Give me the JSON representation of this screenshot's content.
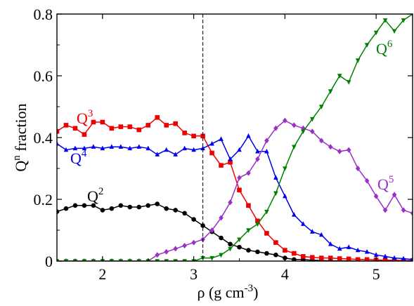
{
  "chart_data": {
    "type": "line",
    "xlabel": {
      "base": "ρ (g cm",
      "sup": "-3",
      "tail": ")"
    },
    "ylabel": {
      "base": "Q",
      "sup": "n",
      "tail": " fraction"
    },
    "xlim": [
      1.5,
      5.4
    ],
    "ylim": [
      0,
      0.8
    ],
    "xticks": [
      2,
      3,
      4,
      5
    ],
    "yticks": [
      0,
      0.2,
      0.4,
      0.6,
      0.8
    ],
    "xtick_labels": [
      "2",
      "3",
      "4",
      "5"
    ],
    "ytick_labels": [
      "0",
      "0.2",
      "0.4",
      "0.6",
      "0.8"
    ],
    "grid": false,
    "legend": "inline labels",
    "reference_line": {
      "x": 3.1,
      "style": "dashed"
    },
    "series": [
      {
        "name": "Q2",
        "label_base": "Q",
        "label_sup": "2",
        "color": "#000000",
        "marker": "circle",
        "x": [
          1.5,
          1.6,
          1.7,
          1.8,
          1.9,
          2.0,
          2.1,
          2.2,
          2.3,
          2.4,
          2.5,
          2.6,
          2.7,
          2.8,
          2.9,
          3.0,
          3.1,
          3.2,
          3.3,
          3.4,
          3.5,
          3.6,
          3.7,
          3.8,
          3.9,
          4.0,
          4.1,
          4.2,
          4.3,
          4.4,
          4.5,
          4.6,
          4.7,
          4.8,
          4.9,
          5.0,
          5.1,
          5.2,
          5.3,
          5.4
        ],
        "y": [
          0.16,
          0.17,
          0.18,
          0.18,
          0.18,
          0.165,
          0.17,
          0.18,
          0.175,
          0.175,
          0.18,
          0.185,
          0.17,
          0.165,
          0.155,
          0.135,
          0.115,
          0.095,
          0.075,
          0.055,
          0.045,
          0.035,
          0.03,
          0.025,
          0.02,
          0.01,
          0.005,
          0.005,
          0.003,
          0.002,
          0.001,
          0.001,
          0.001,
          0,
          0,
          0,
          0,
          0,
          0,
          0
        ]
      },
      {
        "name": "Q3",
        "label_base": "Q",
        "label_sup": "3",
        "color": "#ee0000",
        "marker": "square",
        "x": [
          1.5,
          1.6,
          1.7,
          1.8,
          1.9,
          2.0,
          2.1,
          2.2,
          2.3,
          2.4,
          2.5,
          2.6,
          2.7,
          2.8,
          2.9,
          3.0,
          3.1,
          3.2,
          3.3,
          3.4,
          3.5,
          3.6,
          3.7,
          3.8,
          3.9,
          4.0,
          4.1,
          4.2,
          4.3,
          4.4,
          4.5,
          4.6,
          4.7,
          4.8,
          4.9,
          5.0,
          5.1,
          5.2,
          5.3,
          5.4
        ],
        "y": [
          0.42,
          0.44,
          0.43,
          0.41,
          0.45,
          0.45,
          0.43,
          0.435,
          0.435,
          0.425,
          0.44,
          0.465,
          0.44,
          0.445,
          0.415,
          0.405,
          0.405,
          0.35,
          0.31,
          0.32,
          0.23,
          0.18,
          0.13,
          0.09,
          0.06,
          0.035,
          0.025,
          0.015,
          0.012,
          0.01,
          0.01,
          0.008,
          0.007,
          0.005,
          0.005,
          0.004,
          0.003,
          0.003,
          0.002,
          0.002
        ]
      },
      {
        "name": "Q4",
        "label_base": "Q",
        "label_sup": "4",
        "color": "#0000ee",
        "marker": "triangle-up",
        "x": [
          1.5,
          1.6,
          1.7,
          1.8,
          1.9,
          2.0,
          2.1,
          2.2,
          2.3,
          2.4,
          2.5,
          2.6,
          2.7,
          2.8,
          2.9,
          3.0,
          3.1,
          3.2,
          3.3,
          3.4,
          3.5,
          3.6,
          3.7,
          3.8,
          3.9,
          4.0,
          4.1,
          4.2,
          4.3,
          4.4,
          4.5,
          4.6,
          4.7,
          4.8,
          4.9,
          5.0,
          5.1,
          5.2,
          5.3,
          5.4
        ],
        "y": [
          0.38,
          0.36,
          0.365,
          0.365,
          0.37,
          0.365,
          0.37,
          0.37,
          0.365,
          0.37,
          0.365,
          0.345,
          0.36,
          0.345,
          0.365,
          0.36,
          0.365,
          0.38,
          0.395,
          0.33,
          0.36,
          0.405,
          0.355,
          0.355,
          0.27,
          0.21,
          0.15,
          0.12,
          0.095,
          0.085,
          0.055,
          0.04,
          0.045,
          0.035,
          0.03,
          0.02,
          0.015,
          0.01,
          0.008,
          0.005
        ]
      },
      {
        "name": "Q5",
        "label_base": "Q",
        "label_sup": "5",
        "color": "#9a30c8",
        "marker": "diamond",
        "x": [
          1.5,
          1.6,
          1.7,
          1.8,
          1.9,
          2.0,
          2.1,
          2.2,
          2.3,
          2.4,
          2.5,
          2.6,
          2.7,
          2.8,
          2.9,
          3.0,
          3.1,
          3.2,
          3.3,
          3.4,
          3.5,
          3.6,
          3.7,
          3.8,
          3.9,
          4.0,
          4.1,
          4.2,
          4.3,
          4.4,
          4.5,
          4.6,
          4.7,
          4.8,
          4.9,
          5.0,
          5.1,
          5.2,
          5.3,
          5.4
        ],
        "y": [
          0,
          0,
          0,
          0,
          0,
          0,
          0,
          0,
          0,
          0,
          0,
          0.02,
          0.03,
          0.04,
          0.05,
          0.06,
          0.07,
          0.1,
          0.14,
          0.19,
          0.27,
          0.285,
          0.33,
          0.39,
          0.43,
          0.455,
          0.44,
          0.43,
          0.42,
          0.39,
          0.37,
          0.355,
          0.36,
          0.3,
          0.26,
          0.21,
          0.165,
          0.215,
          0.165,
          0.155
        ]
      },
      {
        "name": "Q6",
        "label_base": "Q",
        "label_sup": "6",
        "color": "#008000",
        "marker": "triangle-down",
        "x": [
          1.5,
          1.6,
          1.7,
          1.8,
          1.9,
          2.0,
          2.1,
          2.2,
          2.3,
          2.4,
          2.5,
          2.6,
          2.7,
          2.8,
          2.9,
          3.0,
          3.1,
          3.2,
          3.3,
          3.4,
          3.5,
          3.6,
          3.7,
          3.8,
          3.9,
          4.0,
          4.1,
          4.2,
          4.3,
          4.4,
          4.5,
          4.6,
          4.7,
          4.8,
          4.9,
          5.0,
          5.1,
          5.2,
          5.3,
          5.4
        ],
        "y": [
          0,
          0,
          0,
          0,
          0,
          0,
          0,
          0,
          0,
          0,
          0,
          0,
          0,
          0,
          0,
          0,
          0.01,
          0.01,
          0.02,
          0.04,
          0.07,
          0.1,
          0.12,
          0.16,
          0.22,
          0.3,
          0.37,
          0.42,
          0.46,
          0.5,
          0.55,
          0.6,
          0.58,
          0.65,
          0.7,
          0.74,
          0.78,
          0.745,
          0.78,
          0.8
        ]
      }
    ]
  }
}
